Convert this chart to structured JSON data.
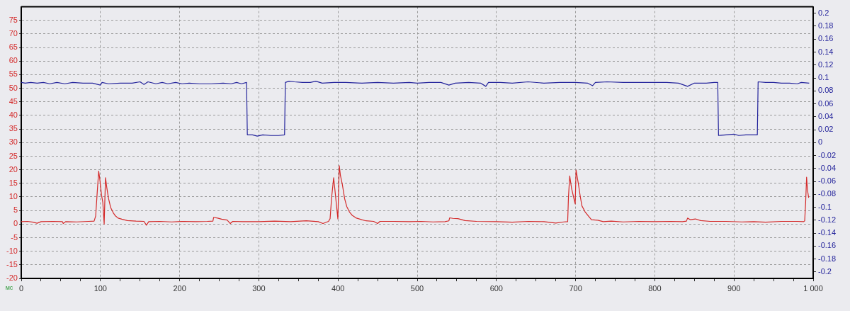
{
  "chart_data": {
    "type": "line",
    "xlabel": "мс",
    "series": [
      {
        "color": "#d42a2a",
        "x": [
          0,
          8,
          15,
          20,
          25,
          40,
          52,
          53,
          56,
          70,
          85,
          92,
          94,
          96,
          97.8,
          99,
          101.4,
          103,
          104.7,
          106.4,
          108,
          110.3,
          113,
          116.3,
          119,
          122.3,
          127,
          134,
          145,
          155,
          158,
          161,
          175,
          190,
          205,
          220,
          235,
          242,
          243,
          248,
          253,
          260,
          264,
          267,
          280,
          300,
          320,
          340,
          360,
          375,
          381,
          388,
          390,
          392,
          394.5,
          397,
          399.8,
          401.6,
          403,
          405.5,
          408.4,
          411,
          414.4,
          418,
          423.3,
          430,
          435.3,
          445,
          450,
          453,
          470,
          490,
          505,
          520,
          535,
          540,
          541,
          545,
          551.5,
          560.5,
          575,
          600,
          620,
          640,
          660,
          675,
          685,
          690,
          691,
          692.6,
          695,
          699.5,
          700.6,
          703.7,
          706,
          708,
          712,
          715.6,
          720,
          728,
          735,
          745,
          760,
          780,
          800,
          820,
          835,
          840,
          841.4,
          845,
          851.3,
          858,
          870,
          890,
          910,
          925,
          940,
          960,
          980,
          988,
          989.3,
          990.5,
          991.7,
          992.8,
          994.3
        ],
        "values": [
          0.9,
          1.0,
          0.7,
          0.3,
          0.9,
          1.0,
          0.9,
          0.2,
          0.9,
          0.8,
          1.0,
          1.1,
          3,
          12,
          19.5,
          17,
          10.6,
          8,
          0,
          17.1,
          13.5,
          9.3,
          6,
          4.1,
          3.0,
          2.2,
          1.8,
          1.3,
          1.1,
          1.0,
          -0.4,
          0.9,
          1.0,
          0.8,
          1.0,
          0.9,
          1.0,
          1.1,
          2.5,
          2.2,
          1.8,
          1.5,
          0.2,
          1.0,
          0.9,
          0.9,
          1.1,
          0.9,
          1.2,
          0.9,
          0.2,
          1.0,
          2,
          10,
          17.1,
          10,
          1.9,
          21.5,
          18,
          14.5,
          9.3,
          6.5,
          4.5,
          3.2,
          2.2,
          1.6,
          1.2,
          1.0,
          0.2,
          1.0,
          1.0,
          0.9,
          1.0,
          0.8,
          0.9,
          1.2,
          2.3,
          2.1,
          2.0,
          1.3,
          1.0,
          0.9,
          0.7,
          1.0,
          0.9,
          0.4,
          0.8,
          0.9,
          10,
          17.7,
          13,
          7.4,
          19.9,
          14.5,
          10,
          6.7,
          4.5,
          3.2,
          1.6,
          1.4,
          0.9,
          1.1,
          0.8,
          1.0,
          0.9,
          1.0,
          0.9,
          1.1,
          2.2,
          1.6,
          1.9,
          1.3,
          1.0,
          1.0,
          0.8,
          0.9,
          0.7,
          1.0,
          1.0,
          0.9,
          1.2,
          8,
          17.3,
          12.6,
          9.7
        ]
      },
      {
        "color": "#23239b",
        "axis": "y2",
        "x": [
          0,
          5,
          12,
          20,
          28,
          36,
          45,
          55,
          65,
          78,
          90,
          100,
          102,
          110,
          125,
          140,
          150,
          155,
          160,
          170,
          178,
          185,
          195,
          203,
          212,
          225,
          240,
          255,
          265,
          272,
          278,
          284.5,
          285.5,
          292,
          298,
          305,
          315,
          325,
          332.5,
          333.5,
          338,
          345,
          355,
          365,
          372,
          380,
          395,
          410,
          430,
          450,
          470,
          490,
          500,
          515,
          530,
          540,
          548,
          565,
          580,
          586.6,
          590,
          605,
          620,
          640,
          660,
          680,
          700,
          715,
          721.5,
          725,
          740,
          760,
          780,
          800,
          815,
          830,
          841.4,
          850,
          865,
          875,
          879.5,
          880.5,
          890,
          900,
          906,
          915,
          928,
          929.5,
          930.5,
          940,
          950,
          960,
          970,
          980,
          985,
          995
        ],
        "values": [
          0.093,
          0.092,
          0.093,
          0.092,
          0.093,
          0.091,
          0.093,
          0.091,
          0.093,
          0.092,
          0.092,
          0.089,
          0.093,
          0.091,
          0.092,
          0.092,
          0.094,
          0.09,
          0.094,
          0.091,
          0.093,
          0.091,
          0.093,
          0.091,
          0.092,
          0.091,
          0.091,
          0.092,
          0.091,
          0.093,
          0.091,
          0.093,
          0.012,
          0.012,
          0.01,
          0.012,
          0.011,
          0.011,
          0.012,
          0.093,
          0.095,
          0.094,
          0.093,
          0.093,
          0.095,
          0.092,
          0.093,
          0.093,
          0.092,
          0.093,
          0.092,
          0.093,
          0.092,
          0.093,
          0.093,
          0.089,
          0.092,
          0.093,
          0.092,
          0.087,
          0.093,
          0.093,
          0.092,
          0.094,
          0.092,
          0.093,
          0.093,
          0.092,
          0.088,
          0.093,
          0.094,
          0.093,
          0.093,
          0.093,
          0.093,
          0.092,
          0.087,
          0.092,
          0.092,
          0.093,
          0.093,
          0.011,
          0.012,
          0.013,
          0.011,
          0.012,
          0.012,
          0.012,
          0.094,
          0.093,
          0.093,
          0.092,
          0.092,
          0.091,
          0.093,
          0.092
        ]
      }
    ],
    "xlim": [
      0,
      1000
    ],
    "xticks": [
      0,
      {
        "value": 25,
        "label": null
      },
      {
        "value": 50,
        "label": null
      },
      {
        "value": 75,
        "label": null
      },
      100,
      {
        "value": 125,
        "label": null
      },
      {
        "value": 150,
        "label": null
      },
      {
        "value": 175,
        "label": null
      },
      200,
      {
        "value": 225,
        "label": null
      },
      {
        "value": 250,
        "label": null
      },
      {
        "value": 275,
        "label": null
      },
      300,
      {
        "value": 325,
        "label": null
      },
      {
        "value": 350,
        "label": null
      },
      {
        "value": 375,
        "label": null
      },
      400,
      {
        "value": 425,
        "label": null
      },
      {
        "value": 450,
        "label": null
      },
      {
        "value": 475,
        "label": null
      },
      500,
      {
        "value": 525,
        "label": null
      },
      {
        "value": 550,
        "label": null
      },
      {
        "value": 575,
        "label": null
      },
      600,
      {
        "value": 625,
        "label": null
      },
      {
        "value": 650,
        "label": null
      },
      {
        "value": 675,
        "label": null
      },
      700,
      {
        "value": 725,
        "label": null
      },
      {
        "value": 750,
        "label": null
      },
      {
        "value": 775,
        "label": null
      },
      800,
      {
        "value": 825,
        "label": null
      },
      {
        "value": 850,
        "label": null
      },
      {
        "value": 875,
        "label": null
      },
      900,
      {
        "value": 925,
        "label": null
      },
      {
        "value": 950,
        "label": null
      },
      {
        "value": 975,
        "label": null
      },
      {
        "value": 1000,
        "label": "1 000"
      }
    ],
    "ylim": [
      -20,
      80
    ],
    "yticks": [
      -20,
      -15,
      -10,
      -5,
      0,
      5,
      10,
      15,
      20,
      25,
      30,
      35,
      40,
      45,
      50,
      55,
      60,
      65,
      70,
      75
    ],
    "y2lim": [
      -0.21,
      0.21
    ],
    "y2ticks": [
      -0.2,
      -0.18,
      -0.16,
      -0.14,
      -0.12,
      -0.1,
      -0.08,
      -0.06,
      -0.04,
      -0.02,
      0,
      0.02,
      0.04,
      0.06,
      0.08,
      0.1,
      0.12,
      0.14,
      0.16,
      0.18,
      0.2
    ],
    "grid": true,
    "legend": false,
    "marker": "none"
  }
}
